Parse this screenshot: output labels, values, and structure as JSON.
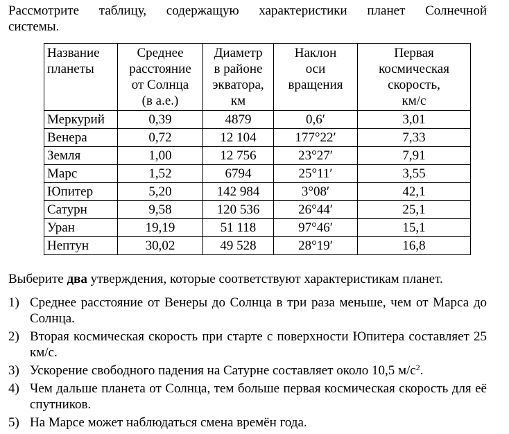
{
  "intro": {
    "line1": "Рассмотрите таблицу, содержащую характеристики планет Солнечной",
    "line2": "системы."
  },
  "table": {
    "headers": [
      [
        "Название",
        "планеты"
      ],
      [
        "Среднее",
        "расстояние",
        "от Солнца",
        "(в а.е.)"
      ],
      [
        "Диаметр",
        "в районе",
        "экватора,",
        "км"
      ],
      [
        "Наклон",
        "оси",
        "вращения"
      ],
      [
        "Первая",
        "космическая",
        "скорость,",
        "км/с"
      ]
    ],
    "rows": [
      [
        "Меркурий",
        "0,39",
        "4879",
        "0,6′",
        "3,01"
      ],
      [
        "Венера",
        "0,72",
        "12 104",
        "177°22′",
        "7,33"
      ],
      [
        "Земля",
        "1,00",
        "12 756",
        "23°27′",
        "7,91"
      ],
      [
        "Марс",
        "1,52",
        "6794",
        "25°11′",
        "3,55"
      ],
      [
        "Юпитер",
        "5,20",
        "142 984",
        "3°08′",
        "42,1"
      ],
      [
        "Сатурн",
        "9,58",
        "120 536",
        "26°44′",
        "25,1"
      ],
      [
        "Уран",
        "19,19",
        "51 118",
        "97°46′",
        "15,1"
      ],
      [
        "Нептун",
        "30,02",
        "49 528",
        "28°19′",
        "16,8"
      ]
    ]
  },
  "task": {
    "before": "Выберите ",
    "bold": "два",
    "after": " утверждения, которые соответствуют характеристикам планет."
  },
  "options": [
    {
      "num": "1)",
      "text": "Среднее расстояние от Венеры до Солнца в три раза меньше, чем от Марса до Солнца."
    },
    {
      "num": "2)",
      "text": "Вторая космическая скорость при старте с поверхности Юпитера составляет 25 км/с."
    },
    {
      "num": "3)",
      "text": "Ускорение свободного падения на Сатурне составляет около 10,5 м/с",
      "sup": "2",
      "tail": "."
    },
    {
      "num": "4)",
      "text": "Чем дальше планета от Солнца, тем больше первая космическая скорость для её спутников."
    },
    {
      "num": "5)",
      "text": "На Марсе может наблюдаться смена времён года."
    }
  ]
}
